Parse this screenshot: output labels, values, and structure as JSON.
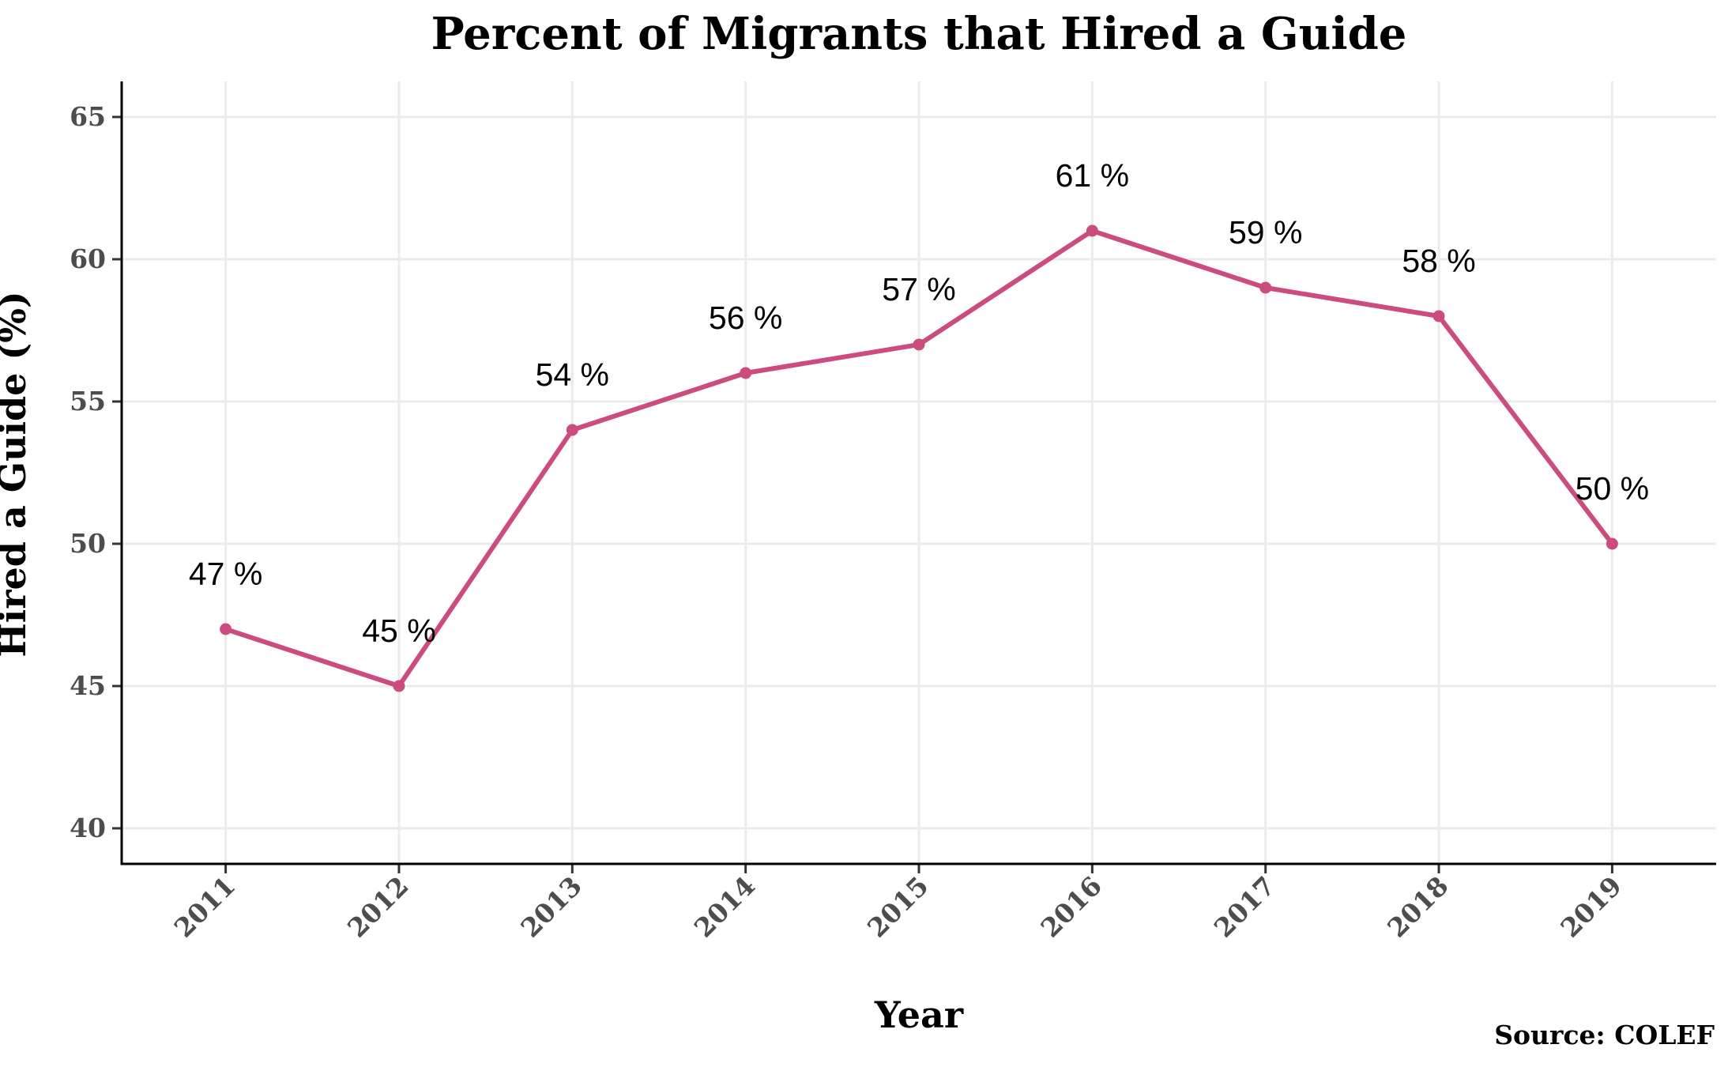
{
  "chart_data": {
    "type": "line",
    "title": "Percent of Migrants that Hired a Guide",
    "xlabel": "Year",
    "ylabel": "Hired a Guide (%)",
    "caption": "Source: COLEF",
    "categories": [
      "2011",
      "2012",
      "2013",
      "2014",
      "2015",
      "2016",
      "2017",
      "2018",
      "2019"
    ],
    "series": [
      {
        "values": [
          47,
          45,
          54,
          56,
          57,
          61,
          59,
          58,
          50
        ],
        "labels": [
          "47 %",
          "45 %",
          "54 %",
          "56 %",
          "57 %",
          "61 %",
          "59 %",
          "58 %",
          "50 %"
        ]
      }
    ],
    "ylim": [
      40,
      65
    ],
    "yticks": [
      40,
      45,
      50,
      55,
      60,
      65
    ],
    "ytick_labels": [
      "40",
      "45",
      "50",
      "55",
      "60",
      "65"
    ],
    "grid": true,
    "line_color": "#cc4c7f",
    "point_color": "#cc4c7f"
  }
}
